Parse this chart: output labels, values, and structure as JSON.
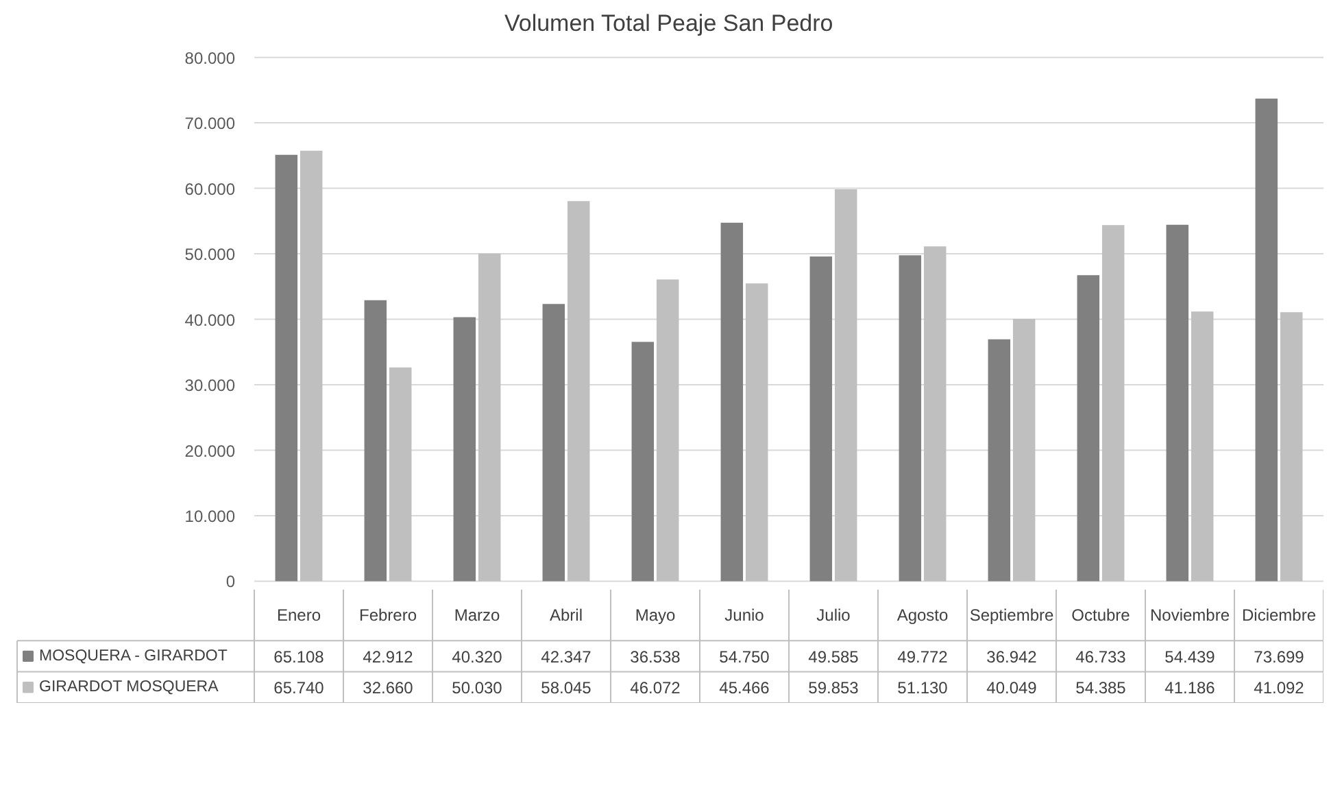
{
  "chart_data": {
    "type": "bar",
    "title": "Volumen Total Peaje San Pedro",
    "categories": [
      "Enero",
      "Febrero",
      "Marzo",
      "Abril",
      "Mayo",
      "Junio",
      "Julio",
      "Agosto",
      "Septiembre",
      "Octubre",
      "Noviembre",
      "Diciembre"
    ],
    "series": [
      {
        "name": "MOSQUERA - GIRARDOT",
        "color": "#808080",
        "values": [
          65108,
          42912,
          40320,
          42347,
          36538,
          54750,
          49585,
          49772,
          36942,
          46733,
          54439,
          73699
        ],
        "value_labels": [
          "65.108",
          "42.912",
          "40.320",
          "42.347",
          "36.538",
          "54.750",
          "49.585",
          "49.772",
          "36.942",
          "46.733",
          "54.439",
          "73.699"
        ]
      },
      {
        "name": "GIRARDOT MOSQUERA",
        "color": "#bfbfbf",
        "values": [
          65740,
          32660,
          50030,
          58045,
          46072,
          45466,
          59853,
          51130,
          40049,
          54385,
          41186,
          41092
        ],
        "value_labels": [
          "65.740",
          "32.660",
          "50.030",
          "58.045",
          "46.072",
          "45.466",
          "59.853",
          "51.130",
          "40.049",
          "54.385",
          "41.186",
          "41.092"
        ]
      }
    ],
    "ylim": [
      0,
      80000
    ],
    "yticks": [
      0,
      {
        "value": 10000,
        "label": "10.000"
      },
      {
        "value": 20000,
        "label": "20.000"
      },
      {
        "value": 30000,
        "label": "30.000"
      },
      {
        "value": 40000,
        "label": "40.000"
      },
      {
        "value": 50000,
        "label": "50.000"
      },
      {
        "value": 60000,
        "label": "60.000"
      },
      {
        "value": 70000,
        "label": "70.000"
      },
      {
        "value": 80000,
        "label": "80.000"
      }
    ],
    "grid": "y",
    "legend": "bottom"
  }
}
